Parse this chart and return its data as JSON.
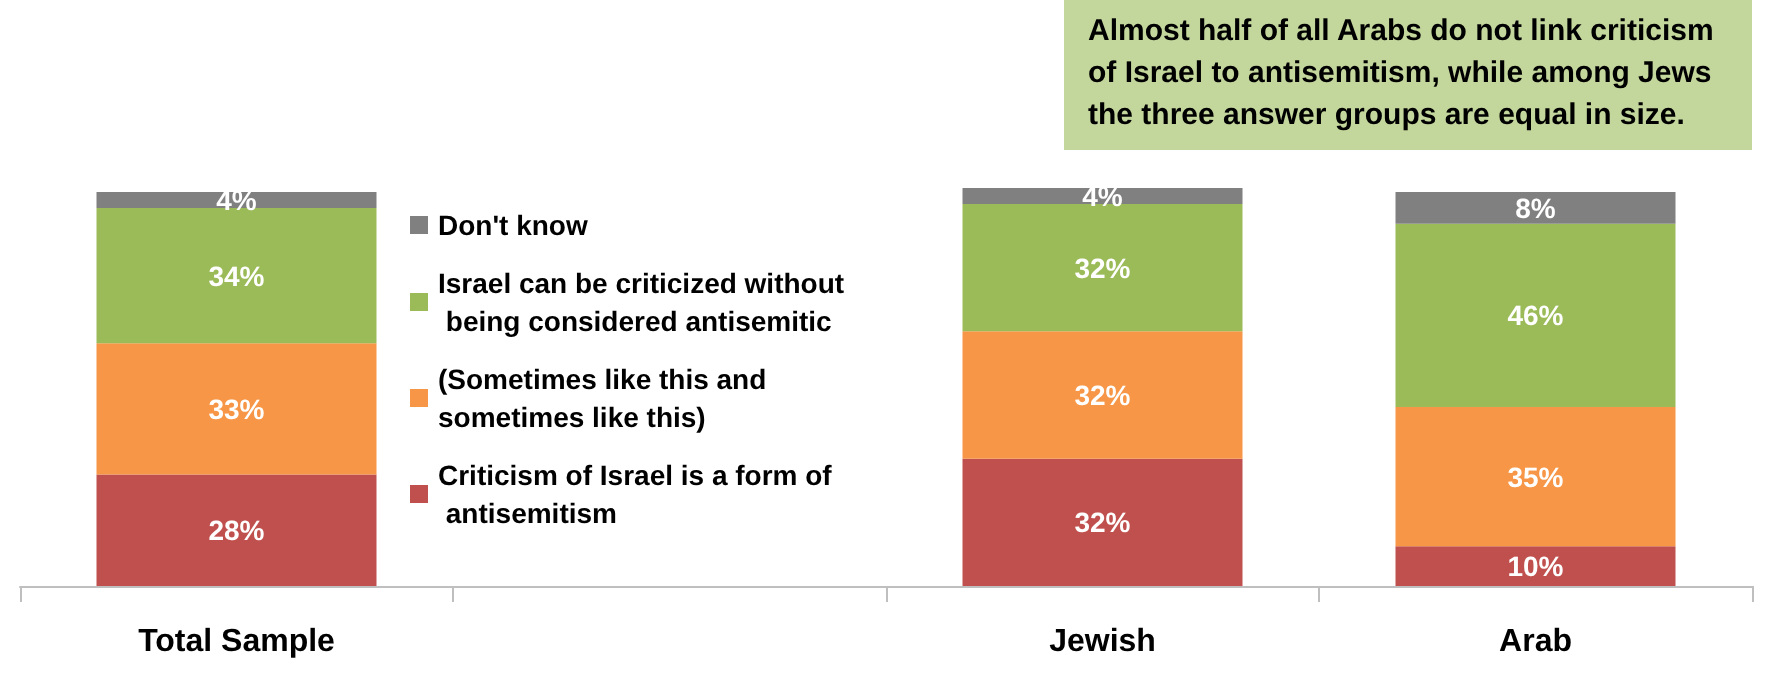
{
  "chart_data": {
    "type": "bar",
    "stacked": true,
    "categories": [
      "Total Sample",
      null,
      "Jewish",
      "Arab"
    ],
    "series": [
      {
        "name": "Criticism of Israel is a form of antisemitism",
        "color": "#c0504d",
        "values": [
          28,
          null,
          32,
          10
        ],
        "value_labels": [
          "28%",
          null,
          "32%",
          "10%"
        ]
      },
      {
        "name": "(Sometimes like this and sometimes like this)",
        "color": "#f79646",
        "values": [
          33,
          null,
          32,
          35
        ],
        "value_labels": [
          "33%",
          null,
          "32%",
          "35%"
        ]
      },
      {
        "name": "Israel can be criticized without being considered antisemitic",
        "color": "#9bbb59",
        "values": [
          34,
          null,
          32,
          46
        ],
        "value_labels": [
          "34%",
          null,
          "32%",
          "46%"
        ]
      },
      {
        "name": "Don't know",
        "color": "#808080",
        "values": [
          4,
          null,
          4,
          8
        ],
        "value_labels": [
          "4%",
          null,
          "4%",
          "8%"
        ]
      }
    ],
    "annotations": [
      "Almost half of all Arabs do not link criticism of Israel to antisemitism, while among Jews the three answer groups are equal in size."
    ],
    "legend": "center",
    "grid": false
  }
}
